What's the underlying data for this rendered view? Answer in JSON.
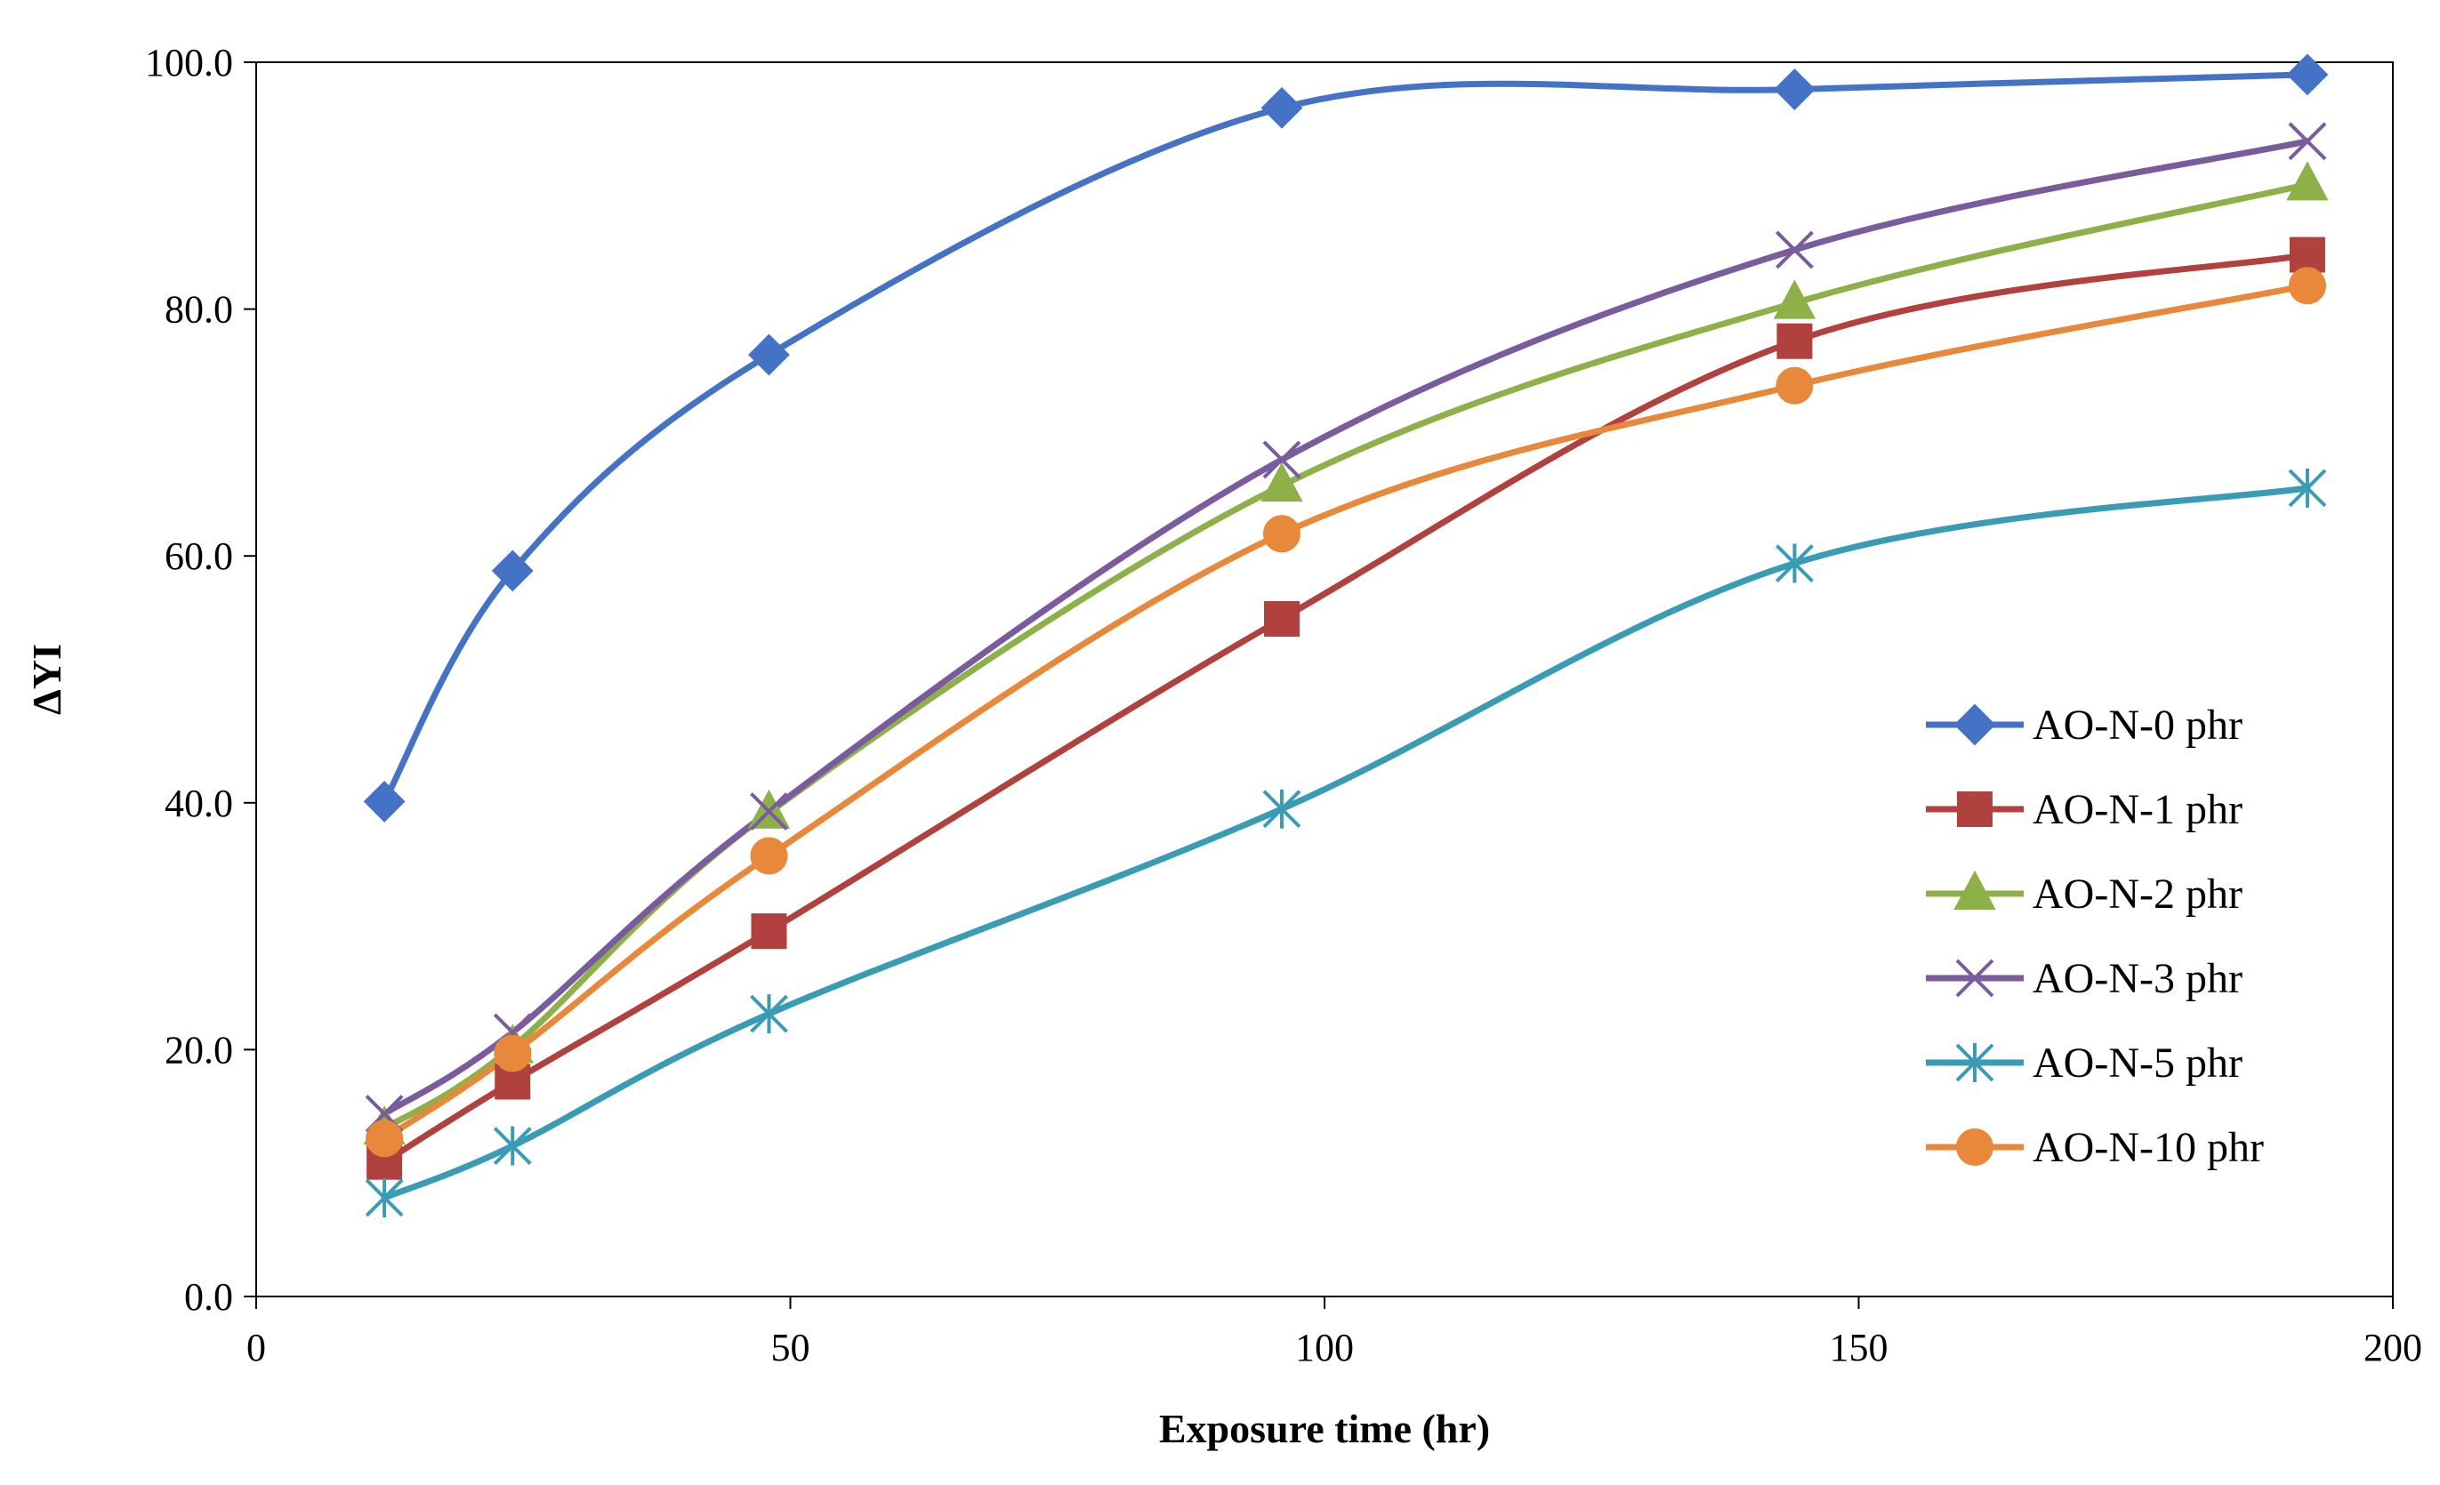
{
  "chart_data": {
    "type": "line",
    "title": "",
    "xlabel": "Exposure time (hr)",
    "ylabel": "ΔYI",
    "xlim": [
      0,
      200
    ],
    "ylim": [
      0,
      100
    ],
    "x_ticks": [
      0,
      50,
      100,
      150,
      200
    ],
    "x_tick_labels": [
      "0",
      "50",
      "100",
      "150",
      "200"
    ],
    "y_ticks": [
      0,
      20,
      40,
      60,
      80,
      100
    ],
    "y_tick_labels": [
      "0.0",
      "20.0",
      "40.0",
      "60.0",
      "80.0",
      "100.0"
    ],
    "grid": false,
    "legend_position": "bottom-right",
    "smooth": true,
    "x": [
      12,
      24,
      48,
      96,
      144,
      192
    ],
    "series": [
      {
        "name": "AO-N-0 phr",
        "marker": "diamond",
        "color": "#4472C4",
        "values": [
          40.1,
          58.8,
          76.3,
          96.3,
          97.8,
          99.0
        ]
      },
      {
        "name": "AO-N-1 phr",
        "marker": "square",
        "color": "#B0413E",
        "values": [
          10.9,
          17.4,
          29.6,
          54.9,
          77.4,
          84.4
        ]
      },
      {
        "name": "AO-N-2 phr",
        "marker": "triangle",
        "color": "#8DB048",
        "values": [
          13.6,
          20.2,
          39.2,
          65.7,
          80.5,
          90.1
        ]
      },
      {
        "name": "AO-N-3 phr",
        "marker": "x",
        "color": "#7A5C9E",
        "values": [
          14.8,
          21.4,
          39.3,
          67.8,
          84.8,
          93.6
        ]
      },
      {
        "name": "AO-N-5 phr",
        "marker": "asterisk",
        "color": "#3A9BB5",
        "values": [
          8.0,
          12.2,
          22.9,
          39.5,
          59.4,
          65.5
        ]
      },
      {
        "name": "AO-N-10 phr",
        "marker": "circle",
        "color": "#E8883A",
        "values": [
          12.8,
          19.7,
          35.7,
          61.8,
          73.8,
          81.9
        ]
      }
    ]
  }
}
